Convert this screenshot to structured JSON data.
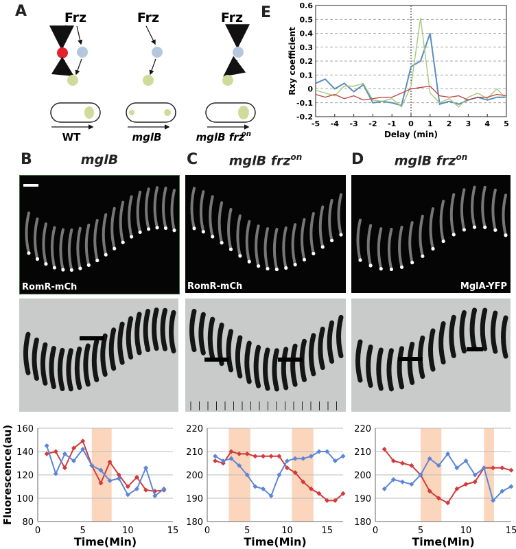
{
  "panels": {
    "A": "A",
    "B": "B",
    "C": "C",
    "D": "D",
    "E": "E"
  },
  "schematic": {
    "frz_label": "Frz",
    "strains": [
      {
        "name": "WT",
        "italic": false
      },
      {
        "name": "mglB",
        "italic": true
      },
      {
        "name": "mglB frz",
        "sup": "on",
        "italic": true
      }
    ]
  },
  "microscopy": [
    {
      "title": "mglB",
      "sup": "",
      "marker": "RomR-mCh"
    },
    {
      "title": "mglB frz",
      "sup": "on",
      "marker": "RomR-mCh"
    },
    {
      "title": "mglB frz",
      "sup": "on",
      "marker": "MglA-YFP"
    }
  ],
  "colors": {
    "red": "#d33a3a",
    "blue": "#5b86d8",
    "purple": "#9b8fc8",
    "highlight": "#fbd6bd",
    "corr_blue": "#5b8cc0",
    "corr_green": "#a6c97a",
    "corr_red": "#c04a4a",
    "frz_blue": "#b4c7de",
    "frz_green": "#cddc9a"
  },
  "chart_data": [
    {
      "type": "line",
      "title": "",
      "xlabel": "Delay (min)",
      "ylabel": "Rxy coefficient",
      "xlim": [
        -5,
        5
      ],
      "ylim": [
        -0.2,
        0.6
      ],
      "xticks": [
        "-5",
        "-4",
        "-3",
        "-2",
        "-1",
        "0",
        "1",
        "2",
        "3",
        "4",
        "5"
      ],
      "yticks": [
        "-0.2",
        "-0.1",
        "0",
        "0.1",
        "0.2",
        "0.3",
        "0.4",
        "0.5",
        "0.6"
      ],
      "grid": "dashed horizontal",
      "x": [
        -5,
        -4.5,
        -4,
        -3.5,
        -3,
        -2.5,
        -2,
        -1.5,
        -1,
        -0.5,
        0,
        0.5,
        1,
        1.5,
        2,
        2.5,
        3,
        3.5,
        4,
        4.5,
        5
      ],
      "series": [
        {
          "color": "#5b8cc0",
          "values": [
            0.04,
            0.07,
            0.0,
            0.04,
            -0.02,
            0.03,
            -0.1,
            -0.09,
            -0.1,
            -0.12,
            0.16,
            0.2,
            0.4,
            -0.11,
            -0.09,
            -0.11,
            -0.08,
            -0.06,
            -0.08,
            -0.06,
            -0.06
          ]
        },
        {
          "color": "#a6c97a",
          "values": [
            -0.01,
            -0.03,
            -0.05,
            0.02,
            0.02,
            0.04,
            -0.08,
            -0.09,
            -0.07,
            -0.13,
            0.02,
            0.51,
            -0.03,
            -0.1,
            -0.07,
            -0.13,
            -0.06,
            -0.03,
            -0.07,
            0.0,
            -0.07
          ]
        },
        {
          "color": "#c04a4a",
          "values": [
            -0.04,
            -0.06,
            -0.04,
            -0.07,
            -0.05,
            -0.08,
            -0.07,
            -0.06,
            -0.06,
            -0.03,
            0.0,
            0.01,
            0.02,
            -0.05,
            -0.06,
            -0.05,
            -0.08,
            -0.06,
            -0.06,
            -0.04,
            -0.05
          ]
        }
      ]
    },
    {
      "type": "line",
      "title": "",
      "xlabel": "Time(Min)",
      "ylabel": "Fluorescence(au)",
      "xlim": [
        0,
        15
      ],
      "ylim": [
        80,
        160
      ],
      "xticks": [
        "0",
        "5",
        "10",
        "15"
      ],
      "yticks": [
        "80",
        "100",
        "120",
        "140",
        "160"
      ],
      "highlights": [
        [
          6,
          8.2
        ]
      ],
      "x": [
        1,
        2,
        3,
        4,
        5,
        6,
        7,
        8,
        9,
        10,
        11,
        12,
        13,
        14
      ],
      "series": [
        {
          "color": "#d33a3a",
          "values": [
            138,
            140,
            126,
            143,
            149,
            128,
            113,
            131,
            120,
            110,
            118,
            107,
            106,
            107
          ]
        },
        {
          "color": "#5b86d8",
          "values": [
            145,
            121,
            138,
            132,
            142,
            128,
            124,
            115,
            117,
            103,
            108,
            126,
            102,
            108
          ]
        }
      ]
    },
    {
      "type": "line",
      "title": "",
      "xlabel": "Time(Min)",
      "ylabel": "",
      "xlim": [
        0,
        17
      ],
      "ylim": [
        180,
        220
      ],
      "xticks": [
        "0",
        "5",
        "10",
        "15"
      ],
      "yticks": [
        "180",
        "190",
        "200",
        "210",
        "220"
      ],
      "highlights": [
        [
          2.7,
          5.4
        ],
        [
          10.6,
          13.3
        ]
      ],
      "x": [
        1,
        2,
        3,
        4,
        5,
        6,
        7,
        8,
        9,
        10,
        11,
        12,
        13,
        14,
        15,
        16,
        17
      ],
      "series": [
        {
          "color": "#d33a3a",
          "values": [
            206,
            205,
            210,
            209,
            209,
            208,
            208,
            208,
            208,
            203,
            201,
            197,
            194,
            192,
            189,
            189,
            192
          ]
        },
        {
          "color": "#5b86d8",
          "values": [
            208,
            206,
            207,
            204,
            200,
            195,
            194,
            191,
            200,
            206,
            207,
            207,
            208,
            210,
            210,
            206,
            208
          ]
        }
      ]
    },
    {
      "type": "line",
      "title": "",
      "xlabel": "Time(Min)",
      "ylabel": "",
      "xlim": [
        0,
        15
      ],
      "ylim": [
        180,
        220
      ],
      "xticks": [
        "0",
        "5",
        "10",
        "15"
      ],
      "yticks": [
        "180",
        "190",
        "200",
        "210",
        "220"
      ],
      "highlights": [
        [
          5,
          7.3
        ],
        [
          12,
          13.1
        ]
      ],
      "x": [
        1,
        2,
        3,
        4,
        5,
        6,
        7,
        8,
        9,
        10,
        11,
        12,
        13,
        14,
        15
      ],
      "series": [
        {
          "color": "#d33a3a",
          "values": [
            211,
            206,
            205,
            204,
            200,
            193,
            190,
            188,
            194,
            196,
            197,
            203,
            203,
            203,
            202
          ]
        },
        {
          "color": "#5b86d8",
          "values": [
            194,
            198,
            197,
            196,
            200,
            207,
            204,
            209,
            203,
            206,
            200,
            203,
            189,
            193,
            195
          ]
        }
      ]
    }
  ]
}
